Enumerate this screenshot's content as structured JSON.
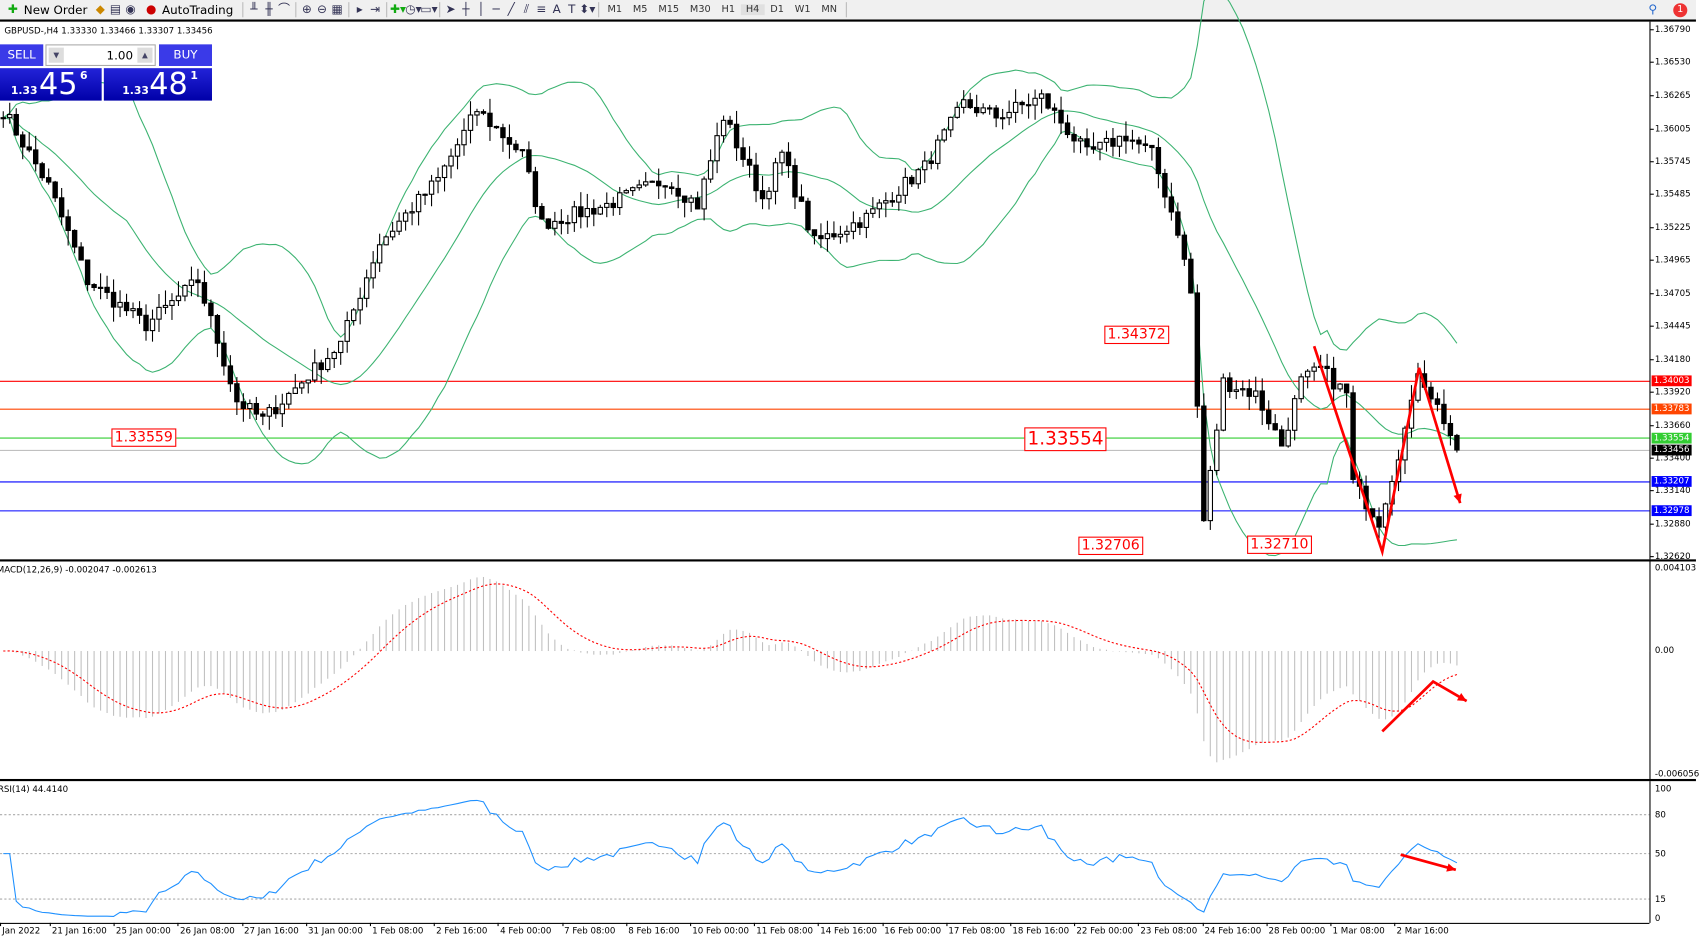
{
  "toolbar": {
    "new_order": "New Order",
    "autotrading": "AutoTrading",
    "timeframes": [
      "M1",
      "M5",
      "M15",
      "M30",
      "H1",
      "H4",
      "D1",
      "W1",
      "MN"
    ],
    "active_timeframe": "H4",
    "notifications": "1"
  },
  "chart": {
    "header": "GBPUSD-,H4  1.33330 1.33466 1.33307 1.33456",
    "trade_panel": {
      "sell": "SELL",
      "buy": "BUY",
      "lot": "1.00",
      "bid_small": "1.33",
      "bid_big": "45",
      "bid_pip": "6",
      "ask_small": "1.33",
      "ask_big": "48",
      "ask_pip": "1"
    },
    "price_ticks": [
      "1.36790",
      "1.36530",
      "1.36265",
      "1.36005",
      "1.35745",
      "1.35485",
      "1.35225",
      "1.34965",
      "1.34705",
      "1.34445",
      "1.34180",
      "1.33920",
      "1.33660",
      "1.33400",
      "1.33140",
      "1.32880",
      "1.32620"
    ],
    "price_range": [
      1.3262,
      1.3679
    ],
    "levels": [
      {
        "price": "1.34003",
        "color": "#ff0000"
      },
      {
        "price": "1.33783",
        "color": "#ff4500"
      },
      {
        "price": "1.33554",
        "color": "#32cd32"
      },
      {
        "price": "1.33456",
        "color": "#000000",
        "bid": true
      },
      {
        "price": "1.33207",
        "color": "#0000ff"
      },
      {
        "price": "1.32978",
        "color": "#0000ff"
      }
    ],
    "annotations": [
      {
        "text": "1.34372",
        "price": 1.34372,
        "candle": 179
      },
      {
        "text": "1.33559",
        "price": 1.33559,
        "candle": 26
      },
      {
        "text": "1.33554",
        "price": 1.33554,
        "candle": 169,
        "big": true
      },
      {
        "text": "1.32706",
        "price": 1.32706,
        "candle": 175
      },
      {
        "text": "1.32710",
        "price": 1.3271,
        "candle": 201
      }
    ],
    "close_keypoints": [
      [
        0,
        1.3615
      ],
      [
        7,
        1.3555
      ],
      [
        13,
        1.348
      ],
      [
        22,
        1.3445
      ],
      [
        30,
        1.348
      ],
      [
        36,
        1.3385
      ],
      [
        40,
        1.337
      ],
      [
        45,
        1.3395
      ],
      [
        52,
        1.343
      ],
      [
        58,
        1.351
      ],
      [
        67,
        1.356
      ],
      [
        73,
        1.3615
      ],
      [
        80,
        1.358
      ],
      [
        83,
        1.3525
      ],
      [
        93,
        1.354
      ],
      [
        102,
        1.356
      ],
      [
        107,
        1.354
      ],
      [
        111,
        1.361
      ],
      [
        117,
        1.3545
      ],
      [
        120,
        1.358
      ],
      [
        125,
        1.351
      ],
      [
        133,
        1.353
      ],
      [
        142,
        1.357
      ],
      [
        148,
        1.362
      ],
      [
        153,
        1.361
      ],
      [
        160,
        1.3625
      ],
      [
        167,
        1.358
      ],
      [
        173,
        1.3595
      ],
      [
        177,
        1.358
      ],
      [
        181,
        1.352
      ],
      [
        183,
        1.347
      ],
      [
        184,
        1.338
      ],
      [
        185,
        1.329
      ],
      [
        188,
        1.34
      ],
      [
        193,
        1.339
      ],
      [
        197,
        1.335
      ],
      [
        200,
        1.34
      ],
      [
        203,
        1.341
      ],
      [
        207,
        1.339
      ],
      [
        208,
        1.332
      ],
      [
        212,
        1.329
      ],
      [
        217,
        1.338
      ],
      [
        218,
        1.341
      ],
      [
        222,
        1.337
      ],
      [
        224,
        1.3346
      ]
    ],
    "candle_count": 225
  },
  "macd": {
    "header": "MACD(12,26,9) -0.002047 -0.002613",
    "ticks": [
      "0.004103",
      "0.00",
      "-0.006056"
    ],
    "range": [
      -0.006056,
      0.004103
    ]
  },
  "rsi": {
    "header": "RSI(14) 44.4140",
    "ticks": [
      "100",
      "80",
      "50",
      "15",
      "0"
    ],
    "levels": [
      80,
      50,
      15
    ]
  },
  "time_axis": [
    "Jan 2022",
    "21 Jan 16:00",
    "25 Jan 00:00",
    "26 Jan 08:00",
    "27 Jan 16:00",
    "31 Jan 00:00",
    "1 Feb 08:00",
    "2 Feb 16:00",
    "4 Feb 00:00",
    "7 Feb 08:00",
    "8 Feb 16:00",
    "10 Feb 00:00",
    "11 Feb 08:00",
    "14 Feb 16:00",
    "16 Feb 00:00",
    "17 Feb 08:00",
    "18 Feb 16:00",
    "22 Feb 00:00",
    "23 Feb 08:00",
    "24 Feb 16:00",
    "28 Feb 00:00",
    "1 Mar 08:00",
    "2 Mar 16:00"
  ],
  "colors": {
    "bollinger": "#3cb371",
    "macd_hist": "#c0c0c0",
    "macd_signal": "#ff0000",
    "rsi": "#1e90ff",
    "arrows": "#ff0000"
  }
}
